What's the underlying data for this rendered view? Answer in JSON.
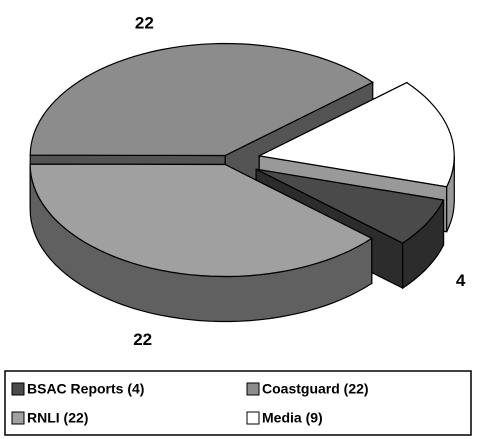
{
  "chart_data": {
    "type": "pie",
    "categories": [
      "BSAC Reports (4)",
      "RNLI (22)",
      "Coastguard (22)",
      "Media (9)"
    ],
    "values": [
      4,
      22,
      22,
      9
    ],
    "colors": [
      "#4a4a4a",
      "#a0a0a0",
      "#8c8c8c",
      "#ffffff"
    ],
    "legend": "bottom"
  }
}
